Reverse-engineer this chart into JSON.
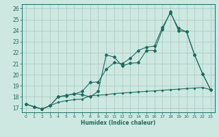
{
  "title": "",
  "xlabel": "Humidex (Indice chaleur)",
  "ylabel": "",
  "bg_color": "#cce8e0",
  "grid_color": "#aaccc4",
  "line_color": "#1a6b60",
  "xlim": [
    -0.5,
    23.5
  ],
  "ylim": [
    16.6,
    26.4
  ],
  "yticks": [
    17,
    18,
    19,
    20,
    21,
    22,
    23,
    24,
    25,
    26
  ],
  "xticks": [
    0,
    1,
    2,
    3,
    4,
    5,
    6,
    7,
    8,
    9,
    10,
    11,
    12,
    13,
    14,
    15,
    16,
    17,
    18,
    19,
    20,
    21,
    22,
    23
  ],
  "line1_x": [
    0,
    1,
    2,
    3,
    4,
    5,
    6,
    7,
    8,
    9,
    10,
    11,
    12,
    13,
    14,
    15,
    16,
    17,
    18,
    19,
    20,
    21,
    22,
    23
  ],
  "line1_y": [
    17.35,
    17.1,
    16.9,
    17.2,
    17.5,
    17.65,
    17.75,
    17.8,
    18.1,
    18.15,
    18.2,
    18.3,
    18.35,
    18.4,
    18.45,
    18.5,
    18.55,
    18.6,
    18.65,
    18.7,
    18.75,
    18.8,
    18.85,
    18.65
  ],
  "line2_x": [
    0,
    1,
    2,
    3,
    4,
    5,
    6,
    7,
    8,
    9,
    10,
    11,
    12,
    13,
    14,
    15,
    16,
    17,
    18,
    19,
    20,
    21,
    22,
    23
  ],
  "line2_y": [
    17.35,
    17.1,
    16.9,
    17.2,
    18.0,
    18.15,
    18.25,
    18.5,
    19.3,
    19.35,
    20.5,
    21.1,
    21.0,
    21.5,
    22.2,
    22.5,
    22.6,
    24.3,
    25.6,
    24.2,
    23.9,
    21.8,
    20.1,
    18.65
  ],
  "line3_x": [
    0,
    1,
    2,
    3,
    4,
    5,
    6,
    7,
    8,
    9,
    10,
    11,
    12,
    13,
    14,
    15,
    16,
    17,
    18,
    19,
    20,
    21,
    22,
    23
  ],
  "line3_y": [
    17.35,
    17.1,
    16.9,
    17.2,
    18.0,
    18.1,
    18.3,
    18.2,
    18.0,
    18.5,
    21.8,
    21.6,
    20.8,
    21.05,
    21.1,
    22.2,
    22.2,
    24.1,
    25.7,
    24.0,
    23.9,
    21.8,
    20.1,
    18.65
  ]
}
